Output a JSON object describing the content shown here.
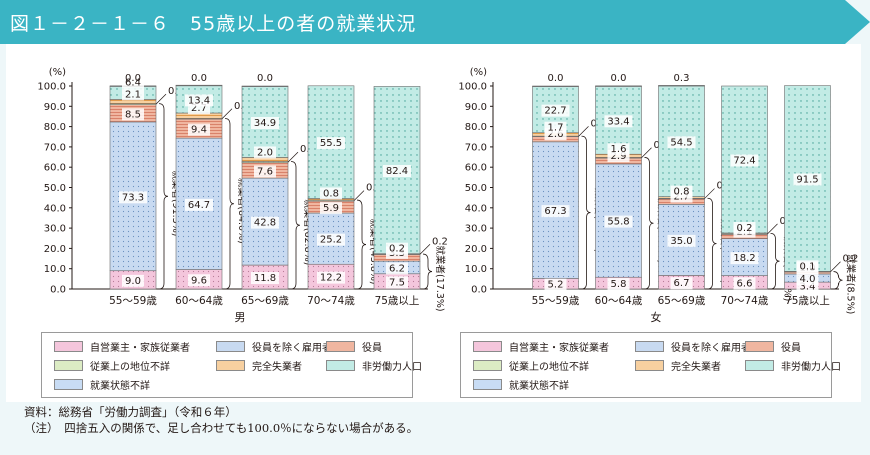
{
  "title": {
    "figure_no": "図１－２－１－６",
    "text": "55歳以上の者の就業状況"
  },
  "colors": {
    "title_bar": "#3ab4c4",
    "self_employed": "#f4c6dc",
    "employee": "#c8daf1",
    "executive": "#f0b6a0",
    "unknown_status": "#dcecc4",
    "unemployed": "#f7d0a0",
    "non_labor": "#c2ebe5",
    "not_stated": "#c8dcf4"
  },
  "chart_data": [
    {
      "type": "bar",
      "stacked": true,
      "panel": "男",
      "yunit": "(%)",
      "ylim": [
        0,
        100
      ],
      "yticks": [
        "0.0",
        "10.0",
        "20.0",
        "30.0",
        "40.0",
        "50.0",
        "60.0",
        "70.0",
        "80.0",
        "90.0",
        "100.0"
      ],
      "categories": [
        "55～59歳",
        "60～64歳",
        "65～69歳",
        "70～74歳",
        "75歳以上"
      ],
      "series": [
        {
          "name": "自営業主・家族従業者",
          "values": [
            9.0,
            9.6,
            11.8,
            12.2,
            7.5
          ]
        },
        {
          "name": "役員を除く雇用者",
          "values": [
            73.3,
            64.7,
            42.8,
            25.2,
            6.2
          ]
        },
        {
          "name": "役員",
          "values": [
            8.5,
            9.4,
            7.6,
            5.9,
            3.3
          ]
        },
        {
          "name": "従業上の地位不詳",
          "values": [
            0.5,
            0.3,
            0.6,
            0.5,
            0.2
          ]
        },
        {
          "name": "完全失業者",
          "values": [
            2.1,
            2.7,
            2.0,
            0.8,
            0.2
          ]
        },
        {
          "name": "非労働力人口",
          "values": [
            6.4,
            13.4,
            34.9,
            55.5,
            82.4
          ]
        },
        {
          "name": "就業状態不詳",
          "values": [
            0.0,
            0.0,
            0.0,
            null,
            null
          ]
        }
      ],
      "employed_total": [
        "就業者(91.3%)",
        "就業者(84.0%)",
        "就業者(62.8%)",
        "就業者(43.8%)",
        "就業者(17.3%)"
      ]
    },
    {
      "type": "bar",
      "stacked": true,
      "panel": "女",
      "yunit": "(%)",
      "ylim": [
        0,
        100
      ],
      "yticks": [
        "0.0",
        "10.0",
        "20.0",
        "30.0",
        "40.0",
        "50.0",
        "60.0",
        "70.0",
        "80.0",
        "90.0",
        "100.0"
      ],
      "categories": [
        "55～59歳",
        "60～64歳",
        "65～69歳",
        "70～74歳",
        "75歳以上"
      ],
      "series": [
        {
          "name": "自営業主・家族従業者",
          "values": [
            5.2,
            5.8,
            6.7,
            6.6,
            3.4
          ]
        },
        {
          "name": "役員を除く雇用者",
          "values": [
            67.3,
            55.8,
            35.0,
            18.2,
            4.0
          ]
        },
        {
          "name": "役員",
          "values": [
            2.6,
            2.9,
            2.7,
            2.1,
            1.0
          ]
        },
        {
          "name": "従業上の地位不詳",
          "values": [
            0.2,
            0.3,
            0.3,
            0.5,
            0.2
          ]
        },
        {
          "name": "完全失業者",
          "values": [
            1.7,
            1.6,
            0.8,
            0.2,
            0.1
          ]
        },
        {
          "name": "非労働力人口",
          "values": [
            22.7,
            33.4,
            54.5,
            72.4,
            91.5
          ]
        },
        {
          "name": "就業状態不詳",
          "values": [
            0.0,
            0.0,
            0.3,
            null,
            null
          ]
        }
      ],
      "employed_total": [
        "就業者(75.4%)",
        "就業者(65.0%)",
        "就業者(44.7%)",
        "就業者(27.3%)",
        "就業者(8.5%)"
      ]
    }
  ],
  "legend": [
    "自営業主・家族従業者",
    "役員を除く雇用者",
    "役員",
    "従業上の地位不詳",
    "完全失業者",
    "非労働力人口",
    "就業状態不詳"
  ],
  "footnotes": {
    "source": "資料：総務省「労働力調査」（令和６年）",
    "note": "（注）　四捨五入の関係で、足し合わせても100.0％にならない場合がある。"
  }
}
